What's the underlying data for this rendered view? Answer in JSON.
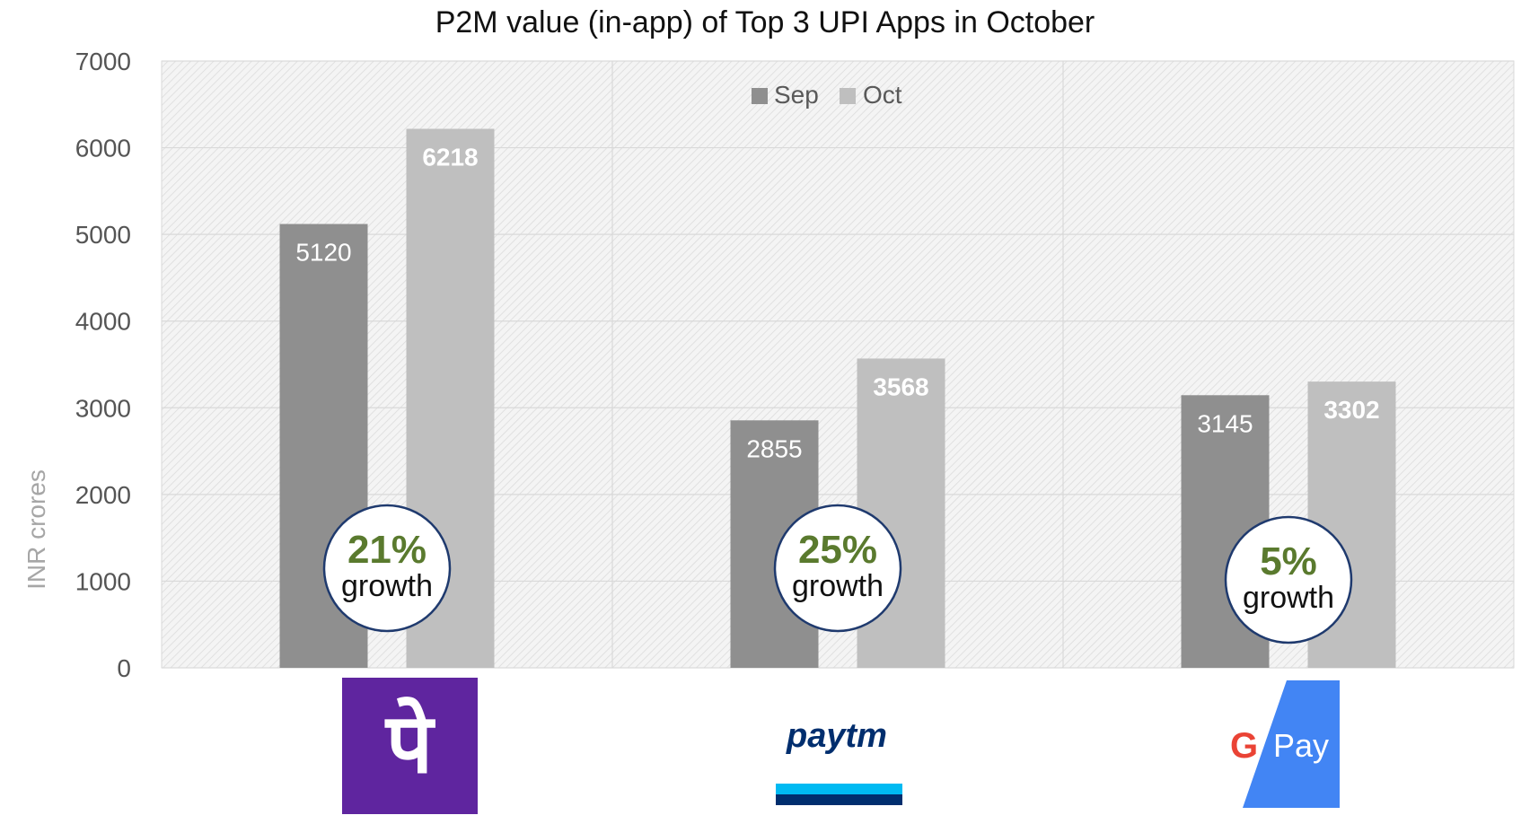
{
  "chart_data": {
    "type": "bar",
    "title": "P2M value (in-app) of Top 3 UPI Apps in October",
    "ylabel": "INR crores",
    "xlabel": "",
    "ylim": [
      0,
      7000
    ],
    "yticks": [
      0,
      1000,
      2000,
      3000,
      4000,
      5000,
      6000,
      7000
    ],
    "grid": true,
    "legend_position": "top-center",
    "categories": [
      "PhonePe",
      "Paytm",
      "Google Pay"
    ],
    "series": [
      {
        "name": "Sep",
        "color": "#8f8f8f",
        "values": [
          5120,
          2855,
          3145
        ]
      },
      {
        "name": "Oct",
        "color": "#bfbfbf",
        "values": [
          6218,
          3568,
          3302
        ]
      }
    ],
    "annotations": [
      {
        "category": "PhonePe",
        "percent": "21%",
        "word": "growth"
      },
      {
        "category": "Paytm",
        "percent": "25%",
        "word": "growth"
      },
      {
        "category": "Google Pay",
        "percent": "5%",
        "word": "growth"
      }
    ]
  },
  "logos": {
    "phonepe": {
      "name": "phonepe-logo",
      "glyph": "पे",
      "color": "#5f259f"
    },
    "paytm": {
      "name": "paytm-logo",
      "wordmark": "paytm",
      "color_dark": "#002e6e",
      "color_light": "#00baf2"
    },
    "gpay": {
      "name": "google-pay-logo",
      "wordmark": "Pay",
      "color": "#4285f4"
    }
  }
}
